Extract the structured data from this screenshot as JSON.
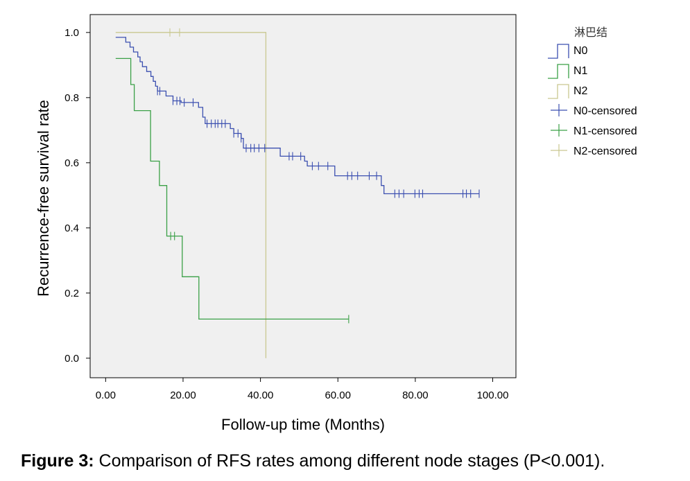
{
  "chart_data": {
    "type": "line",
    "xlabel": "Follow-up time (Months)",
    "ylabel": "Recurrence-free survival rate",
    "xlim": [
      -4,
      106
    ],
    "ylim": [
      -0.06,
      1.055
    ],
    "x_ticks": [
      0,
      20,
      40,
      60,
      80,
      100
    ],
    "x_tick_labels": [
      "0.00",
      "20.00",
      "40.00",
      "60.00",
      "80.00",
      "100.00"
    ],
    "y_ticks": [
      0.0,
      0.2,
      0.4,
      0.6,
      0.8,
      1.0
    ],
    "y_tick_labels": [
      "0.0",
      "0.2",
      "0.4",
      "0.6",
      "0.8",
      "1.0"
    ],
    "plot_background": "#f0f0f0",
    "grid": false,
    "legend": {
      "title": "淋巴结",
      "placement": "right",
      "entries": [
        "N0",
        "N1",
        "N2",
        "N0-censored",
        "N1-censored",
        "N2-censored"
      ]
    },
    "series": [
      {
        "name": "N0",
        "color": "#3b4fb0",
        "steps": [
          [
            2.6,
            0.985
          ],
          [
            5.2,
            0.97
          ],
          [
            6.3,
            0.955
          ],
          [
            7.2,
            0.94
          ],
          [
            8.3,
            0.925
          ],
          [
            8.9,
            0.91
          ],
          [
            9.5,
            0.895
          ],
          [
            10.6,
            0.88
          ],
          [
            11.7,
            0.865
          ],
          [
            12.3,
            0.85
          ],
          [
            12.9,
            0.835
          ],
          [
            13.4,
            0.82
          ],
          [
            15.6,
            0.805
          ],
          [
            17.4,
            0.79
          ],
          [
            19.5,
            0.785
          ],
          [
            24.0,
            0.77
          ],
          [
            25.1,
            0.74
          ],
          [
            25.7,
            0.72
          ],
          [
            32.2,
            0.705
          ],
          [
            33.1,
            0.69
          ],
          [
            35.0,
            0.675
          ],
          [
            35.6,
            0.645
          ],
          [
            45.1,
            0.62
          ],
          [
            51.4,
            0.605
          ],
          [
            52.1,
            0.59
          ],
          [
            59.2,
            0.56
          ],
          [
            71.2,
            0.53
          ],
          [
            71.9,
            0.505
          ],
          [
            96.5,
            0.505
          ]
        ],
        "censored_x": [
          13.4,
          14.0,
          17.4,
          18.4,
          19.2,
          20.3,
          22.6,
          26.2,
          27.3,
          28.3,
          29.0,
          30.0,
          30.9,
          33.1,
          34.2,
          35.0,
          36.3,
          37.5,
          38.4,
          39.6,
          41.1,
          47.4,
          48.3,
          50.4,
          53.4,
          55.0,
          57.4,
          62.5,
          63.6,
          65.1,
          68.1,
          70.0,
          74.7,
          75.8,
          77.0,
          79.9,
          81.0,
          81.9,
          92.3,
          93.2,
          94.3,
          96.5
        ]
      },
      {
        "name": "N1",
        "color": "#3aa046",
        "steps": [
          [
            2.6,
            0.92
          ],
          [
            6.5,
            0.84
          ],
          [
            7.4,
            0.76
          ],
          [
            11.6,
            0.605
          ],
          [
            13.9,
            0.53
          ],
          [
            15.8,
            0.375
          ],
          [
            19.8,
            0.25
          ],
          [
            24.1,
            0.12
          ],
          [
            62.8,
            0.12
          ]
        ],
        "censored_x": [
          16.8,
          17.8,
          62.8
        ]
      },
      {
        "name": "N2",
        "color": "#c9c890",
        "steps": [
          [
            2.6,
            1.0
          ],
          [
            41.4,
            0.0
          ]
        ],
        "censored_x": [
          16.6,
          19.1
        ]
      }
    ]
  },
  "caption": {
    "label": "Figure 3:",
    "text": " Comparison of RFS rates among different node stages (P<0.001)."
  }
}
